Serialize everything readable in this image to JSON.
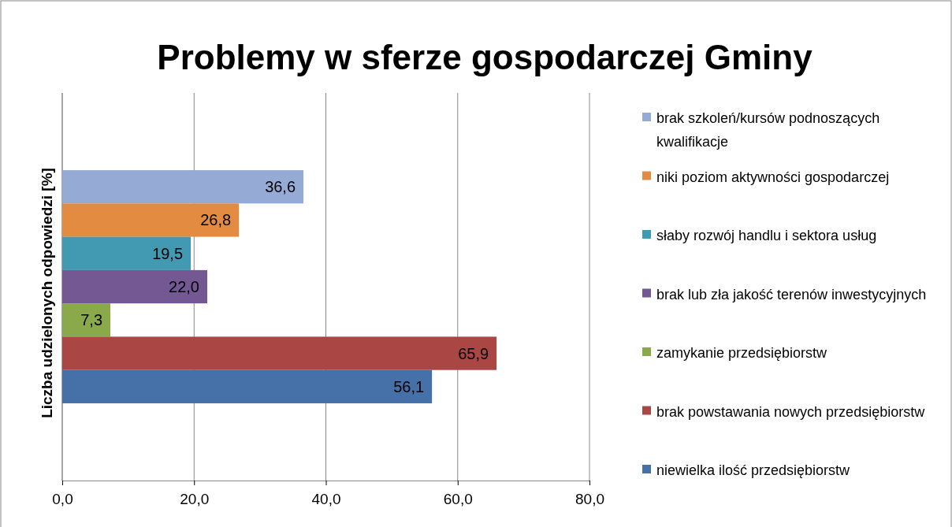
{
  "chart_data": {
    "type": "bar",
    "orientation": "horizontal",
    "title": "Problemy w sferze gospodarczej Gminy",
    "ylabel": "Liczba udzielonych odpowiedzi [%]",
    "categories": [
      null
    ],
    "series": [
      {
        "name": "brak szkoleń/kursów podnoszących kwalifikacje",
        "color": "#95abd6",
        "values": [
          36.6
        ],
        "value_labels": [
          "36,6"
        ]
      },
      {
        "name": "niki poziom aktywności gospodarczej",
        "color": "#e38b41",
        "values": [
          26.8
        ],
        "value_labels": [
          "26,8"
        ]
      },
      {
        "name": "słaby rozwój handlu i sektora usług",
        "color": "#4299b2",
        "values": [
          19.5
        ],
        "value_labels": [
          "19,5"
        ]
      },
      {
        "name": "brak lub zła jakość terenów inwestycyjnych",
        "color": "#735893",
        "values": [
          22.0
        ],
        "value_labels": [
          "22,0"
        ]
      },
      {
        "name": "zamykanie przedsiębiorstw",
        "color": "#8aa94a",
        "values": [
          7.3
        ],
        "value_labels": [
          "7,3"
        ]
      },
      {
        "name": "brak powstawania nowych przedsiębiorstw",
        "color": "#aa4644",
        "values": [
          65.9
        ],
        "value_labels": [
          "65,9"
        ]
      },
      {
        "name": "niewielka ilość przedsiębiorstw",
        "color": "#4570a8",
        "values": [
          56.1
        ],
        "value_labels": [
          "56,1"
        ]
      }
    ],
    "xlim": [
      0,
      80
    ],
    "xticks": [
      {
        "value": 0,
        "label": "0,0"
      },
      {
        "value": 20,
        "label": "20,0"
      },
      {
        "value": 40,
        "label": "40,0"
      },
      {
        "value": 60,
        "label": "60,0"
      },
      {
        "value": 80,
        "label": "80,0"
      }
    ],
    "grid": "x",
    "legend": "right"
  }
}
